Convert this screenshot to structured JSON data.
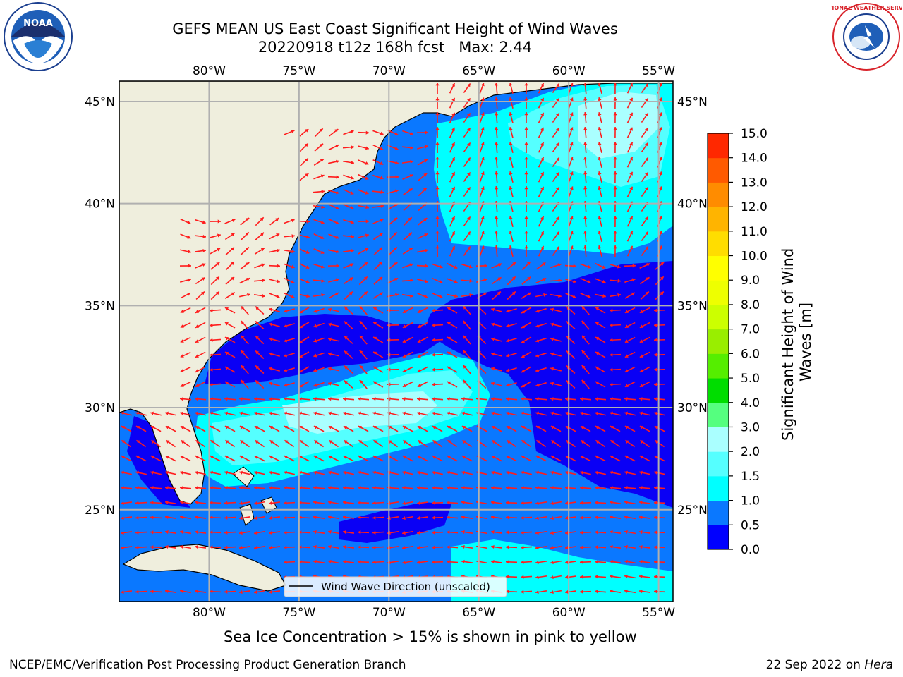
{
  "header": {
    "title_line1": "GEFS MEAN US East Coast Significant Height of Wind Waves",
    "title_line2": "20220918 t12z 168h fcst   Max: 2.44",
    "left_logo_text": "NOAA",
    "right_logo_text": "NATIONAL WEATHER SERVICE"
  },
  "map": {
    "lon_range": [
      -85,
      -54.2
    ],
    "lat_range": [
      20.5,
      46
    ],
    "lon_ticks": [
      {
        "value": -80,
        "label": "80°W"
      },
      {
        "value": -75,
        "label": "75°W"
      },
      {
        "value": -70,
        "label": "70°W"
      },
      {
        "value": -65,
        "label": "65°W"
      },
      {
        "value": -60,
        "label": "60°W"
      },
      {
        "value": -55,
        "label": "55°W"
      }
    ],
    "lat_ticks": [
      {
        "value": 45,
        "label": "45°N"
      },
      {
        "value": 40,
        "label": "40°N"
      },
      {
        "value": 35,
        "label": "35°N"
      },
      {
        "value": 30,
        "label": "30°N"
      },
      {
        "value": 25,
        "label": "25°N"
      }
    ],
    "legend_label": "Wind Wave Direction (unscaled)",
    "colors": {
      "land": "#efeedd",
      "ocean_low": "#0a00f5",
      "ocean_mid": "#0a78ff",
      "ocean_high": "#00ffff",
      "ocean_higher": "#55ffff",
      "ocean_top": "#aaffff",
      "arrow": "#ff1c1c",
      "grid": "#b0b0b0"
    }
  },
  "colorbar": {
    "label_line1": "Significant Height of Wind",
    "label_line2": "Waves [m]",
    "ticks": [
      "0.0",
      "0.5",
      "1.0",
      "1.5",
      "2.0",
      "3.0",
      "4.0",
      "5.0",
      "6.0",
      "7.0",
      "8.0",
      "9.0",
      "10.0",
      "11.0",
      "12.0",
      "13.0",
      "14.0",
      "15.0"
    ],
    "colors": [
      "#0000ff",
      "#0a78ff",
      "#00ffff",
      "#55ffff",
      "#aaffff",
      "#55ff7f",
      "#00dd00",
      "#55ee00",
      "#99ee00",
      "#ccff00",
      "#eeff00",
      "#ffff00",
      "#ffdd00",
      "#ffb400",
      "#ff8c00",
      "#ff5a00",
      "#ff2800"
    ]
  },
  "caption": "Sea Ice Concentration > 15% is shown in pink to yellow",
  "footer": {
    "left": "NCEP/EMC/Verification Post Processing Product Generation Branch",
    "right_prefix": "22 Sep 2022 on ",
    "right_host": "Hera"
  }
}
